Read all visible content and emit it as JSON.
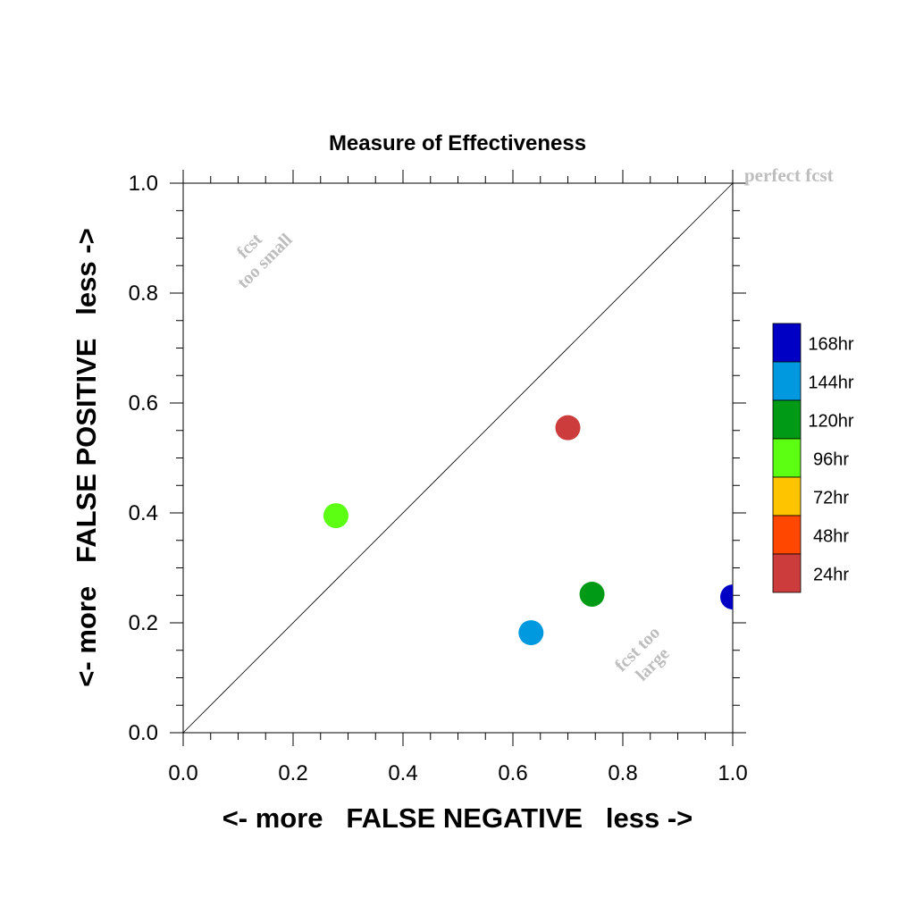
{
  "chart_data": {
    "type": "scatter",
    "title": "Measure of Effectiveness",
    "xlabel": "<- more   FALSE NEGATIVE   less ->",
    "ylabel": "<- more   FALSE POSITIVE   less ->",
    "xlim": [
      0.0,
      1.0
    ],
    "ylim": [
      0.0,
      1.0
    ],
    "x_ticks": [
      "0.0",
      "0.2",
      "0.4",
      "0.6",
      "0.8",
      "1.0"
    ],
    "y_ticks": [
      "0.0",
      "0.2",
      "0.4",
      "0.6",
      "0.8",
      "1.0"
    ],
    "grid": false,
    "diagonal_line": true,
    "annotations": {
      "perfect": "perfect fcst",
      "too_small_line1": "fcst",
      "too_small_line2": "too small",
      "too_large_line1": "fcst too",
      "too_large_line2": "large"
    },
    "legend": {
      "placement": "right",
      "entries": [
        {
          "label": "168hr",
          "color": "#0000c4"
        },
        {
          "label": "144hr",
          "color": "#0099e0"
        },
        {
          "label": "120hr",
          "color": "#009a17"
        },
        {
          "label": "96hr",
          "color": "#5cff12"
        },
        {
          "label": "72hr",
          "color": "#ffc400"
        },
        {
          "label": "48hr",
          "color": "#ff4700"
        },
        {
          "label": "24hr",
          "color": "#cd3c3c"
        }
      ]
    },
    "points": [
      {
        "series": "24hr",
        "x": 0.7,
        "y": 0.555,
        "color": "#cd3c3c"
      },
      {
        "series": "96hr",
        "x": 0.278,
        "y": 0.395,
        "color": "#5cff12"
      },
      {
        "series": "120hr",
        "x": 0.744,
        "y": 0.252,
        "color": "#009a17"
      },
      {
        "series": "144hr",
        "x": 0.633,
        "y": 0.182,
        "color": "#0099e0"
      },
      {
        "series": "168hr",
        "x": 1.0,
        "y": 0.247,
        "color": "#0000c4"
      }
    ]
  }
}
